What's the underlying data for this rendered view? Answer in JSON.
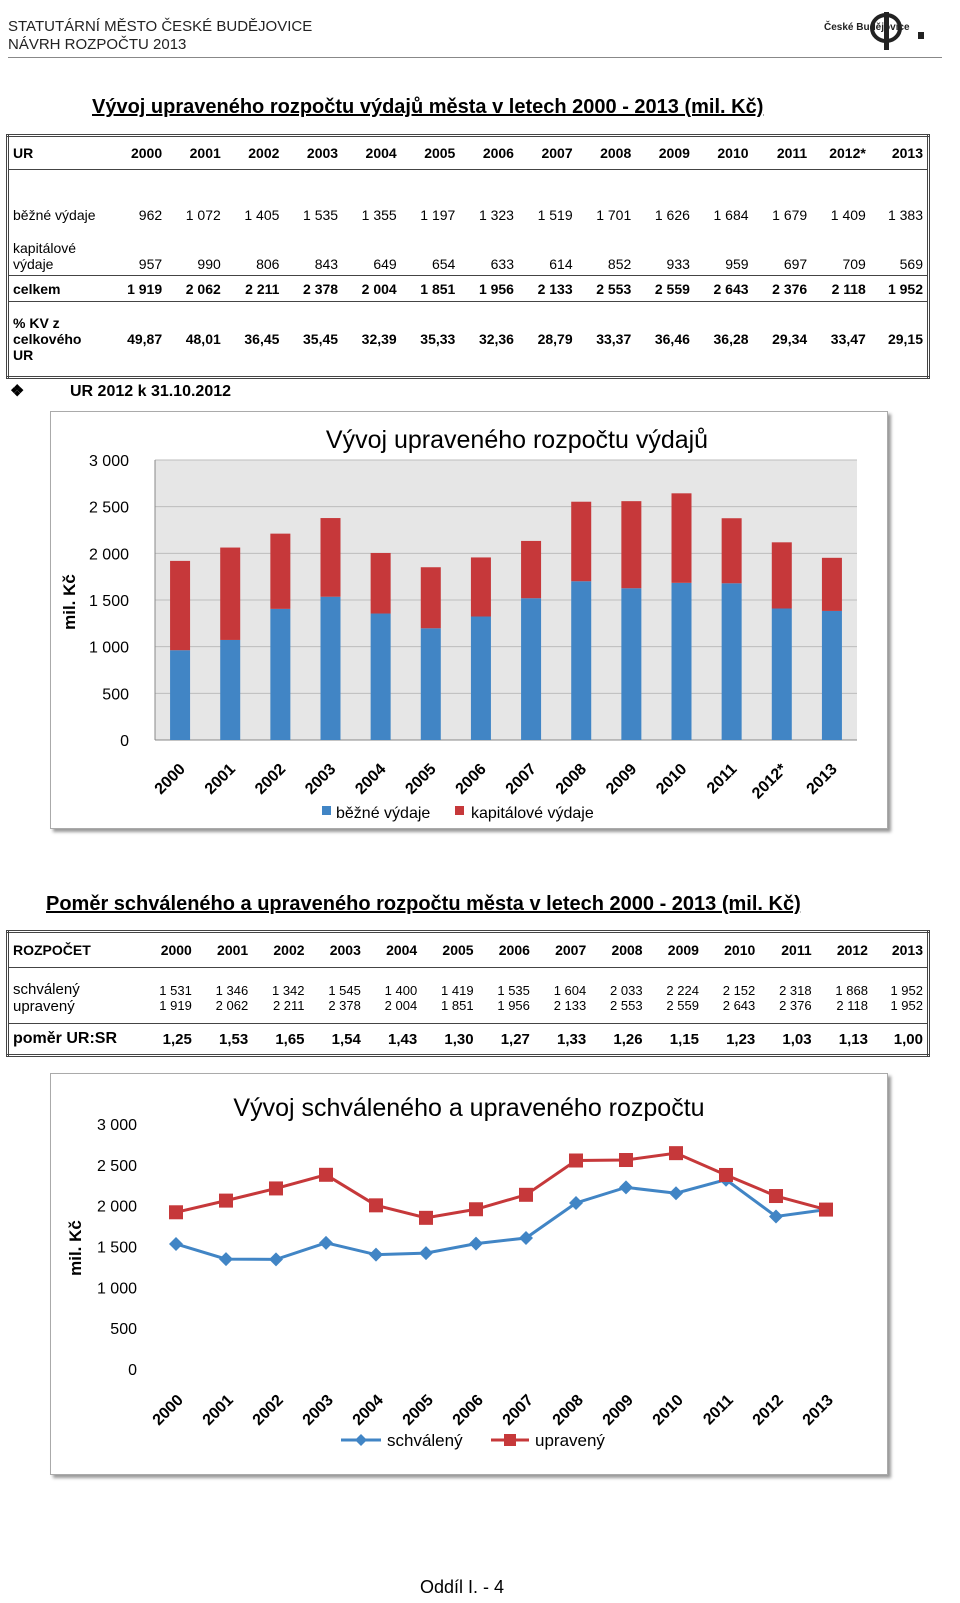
{
  "header": {
    "line1": "STATUTÁRNÍ MĚSTO ČESKÉ BUDĚJOVICE",
    "line2": "NÁVRH ROZPOČTU 2013",
    "logo_text": "České Budějovice"
  },
  "section1": {
    "title": "Vývoj upraveného rozpočtu výdajů města v letech 2000 - 2013 (mil. Kč)",
    "header_label": "UR",
    "years": [
      "2000",
      "2001",
      "2002",
      "2003",
      "2004",
      "2005",
      "2006",
      "2007",
      "2008",
      "2009",
      "2010",
      "2011",
      "2012*",
      "2013"
    ],
    "rows": [
      {
        "label": "běžné výdaje",
        "values": [
          "962",
          "1 072",
          "1 405",
          "1 535",
          "1 355",
          "1 197",
          "1 323",
          "1 519",
          "1 701",
          "1 626",
          "1 684",
          "1 679",
          "1 409",
          "1 383"
        ]
      },
      {
        "label": "kapitálové výdaje",
        "values": [
          "957",
          "990",
          "806",
          "843",
          "649",
          "654",
          "633",
          "614",
          "852",
          "933",
          "959",
          "697",
          "709",
          "569"
        ]
      },
      {
        "label": "celkem",
        "values": [
          "1 919",
          "2 062",
          "2 211",
          "2 378",
          "2 004",
          "1 851",
          "1 956",
          "2 133",
          "2 553",
          "2 559",
          "2 643",
          "2 376",
          "2 118",
          "1 952"
        ]
      },
      {
        "label": "% KV z celkového UR",
        "values": [
          "49,87",
          "48,01",
          "36,45",
          "35,45",
          "32,39",
          "35,33",
          "32,36",
          "28,79",
          "33,37",
          "36,46",
          "36,28",
          "29,34",
          "33,47",
          "29,15"
        ]
      }
    ],
    "note": "UR 2012 k 31.10.2012",
    "note_bullet": "❖"
  },
  "section2": {
    "title": "Poměr schváleného a upraveného rozpočtu města v letech 2000 - 2013 (mil. Kč)",
    "header_label": "ROZPOČET",
    "years": [
      "2000",
      "2001",
      "2002",
      "2003",
      "2004",
      "2005",
      "2006",
      "2007",
      "2008",
      "2009",
      "2010",
      "2011",
      "2012",
      "2013"
    ],
    "rows": [
      {
        "label": "schválený",
        "values": [
          "1 531",
          "1 346",
          "1 342",
          "1 545",
          "1 400",
          "1 419",
          "1 535",
          "1 604",
          "2 033",
          "2 224",
          "2 152",
          "2 318",
          "1 868",
          "1 952"
        ]
      },
      {
        "label": "upravený",
        "values": [
          "1 919",
          "2 062",
          "2 211",
          "2 378",
          "2 004",
          "1 851",
          "1 956",
          "2 133",
          "2 553",
          "2 559",
          "2 643",
          "2 376",
          "2 118",
          "1 952"
        ]
      },
      {
        "label": "poměr UR:SR",
        "values": [
          "1,25",
          "1,53",
          "1,65",
          "1,54",
          "1,43",
          "1,30",
          "1,27",
          "1,33",
          "1,26",
          "1,15",
          "1,23",
          "1,03",
          "1,13",
          "1,00"
        ]
      }
    ]
  },
  "chart_data": [
    {
      "type": "bar",
      "stacked": true,
      "title": "Vývoj upraveného rozpočtu výdajů",
      "ylabel": "mil. Kč",
      "categories": [
        "2000",
        "2001",
        "2002",
        "2003",
        "2004",
        "2005",
        "2006",
        "2007",
        "2008",
        "2009",
        "2010",
        "2011",
        "2012*",
        "2013"
      ],
      "series": [
        {
          "name": "běžné výdaje",
          "color": "#4185C5",
          "values": [
            962,
            1072,
            1405,
            1535,
            1355,
            1197,
            1323,
            1519,
            1701,
            1626,
            1684,
            1679,
            1409,
            1383
          ]
        },
        {
          "name": "kapitálové výdaje",
          "color": "#C6383A",
          "values": [
            957,
            990,
            806,
            843,
            649,
            654,
            633,
            614,
            852,
            933,
            959,
            697,
            709,
            569
          ]
        }
      ],
      "ylim": [
        0,
        3000
      ],
      "yticks": [
        "0",
        "500",
        "1 000",
        "1 500",
        "2 000",
        "2 500",
        "3 000"
      ],
      "grid": true,
      "legend": "bottom"
    },
    {
      "type": "line",
      "title": "Vývoj schváleného a upraveného rozpočtu",
      "ylabel": "mil. Kč",
      "categories": [
        "2000",
        "2001",
        "2002",
        "2003",
        "2004",
        "2005",
        "2006",
        "2007",
        "2008",
        "2009",
        "2010",
        "2011",
        "2012",
        "2013"
      ],
      "series": [
        {
          "name": "schválený",
          "color": "#4185C5",
          "values": [
            1531,
            1346,
            1342,
            1545,
            1400,
            1419,
            1535,
            1604,
            2033,
            2224,
            2152,
            2318,
            1868,
            1952
          ]
        },
        {
          "name": "upravený",
          "color": "#C6383A",
          "values": [
            1919,
            2062,
            2211,
            2378,
            2004,
            1851,
            1956,
            2133,
            2553,
            2559,
            2643,
            2376,
            2118,
            1952
          ]
        }
      ],
      "ylim": [
        0,
        3000
      ],
      "yticks": [
        "0",
        "500",
        "1 000",
        "1 500",
        "2 000",
        "2 500",
        "3 000"
      ],
      "grid": false,
      "legend": "bottom"
    }
  ],
  "footer": "Oddíl I. - 4"
}
